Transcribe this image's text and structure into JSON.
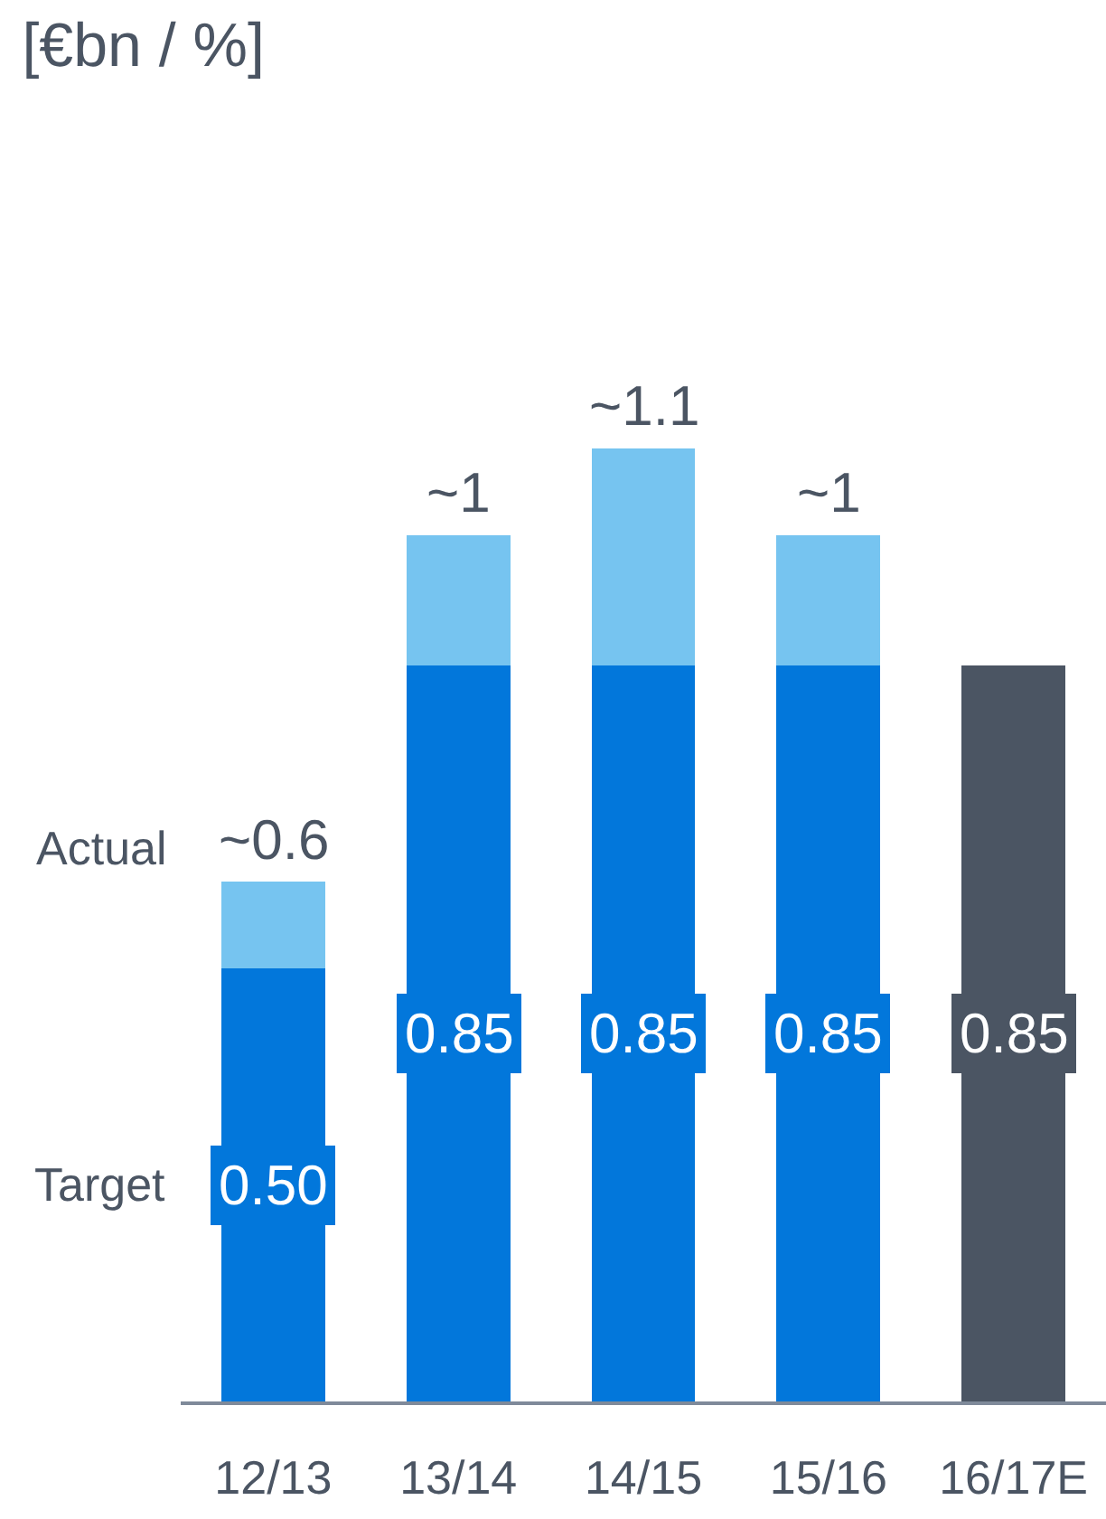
{
  "chart_data": {
    "type": "bar",
    "title": "[€bn / %]",
    "categories": [
      "12/13",
      "13/14",
      "14/15",
      "15/16",
      "16/17E"
    ],
    "stacked": true,
    "tick_labels": "x",
    "grid": false,
    "legend": "left",
    "totals": [
      "~0.6",
      "~1",
      "~1.1",
      "~1",
      null
    ],
    "series": [
      {
        "name": "Target",
        "colors": [
          "#0277db",
          "#0277db",
          "#0277db",
          "#0277db",
          "#4b5563"
        ],
        "values": [
          0.5,
          0.85,
          0.85,
          0.85,
          0.85
        ],
        "value_labels": [
          "0.50",
          "0.85",
          "0.85",
          "0.85",
          "0.85"
        ]
      },
      {
        "name": "Actual",
        "color": "#76c4f0",
        "values": [
          0.1,
          0.15,
          0.25,
          0.15,
          null
        ]
      }
    ]
  }
}
